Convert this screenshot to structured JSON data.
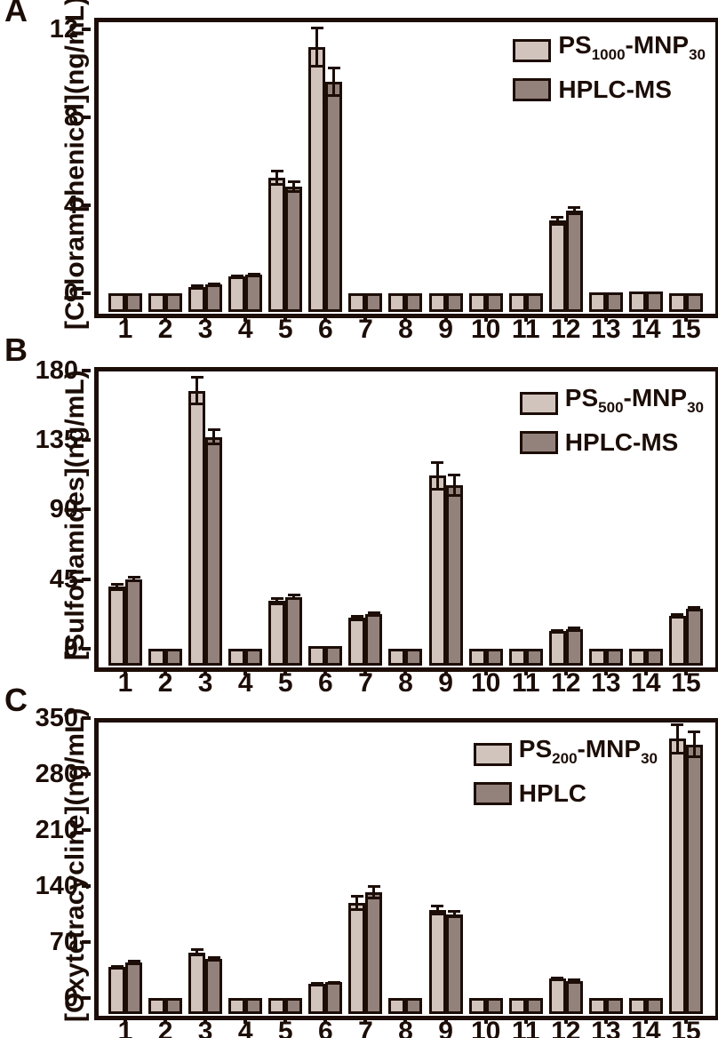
{
  "figure": {
    "background": "#ffffff",
    "ink_color": "#1c0d07",
    "bar_light_color": "#d1c4bd",
    "bar_dark_color": "#93827c"
  },
  "chart_data": [
    {
      "type": "bar",
      "panel_label": "A",
      "ylabel": "[Chloramphenicol](ng/mL)",
      "xlabel": "",
      "categories": [
        "1",
        "2",
        "3",
        "4",
        "5",
        "6",
        "7",
        "8",
        "9",
        "10",
        "11",
        "12",
        "13",
        "14",
        "15"
      ],
      "yticks": [
        0,
        4,
        8,
        12
      ],
      "ylim": [
        0,
        12.5
      ],
      "grid": false,
      "legend_position": "top-right",
      "legend": [
        {
          "label": "PS_{1000}-MNP_{30}",
          "color_key": "bar_light_color"
        },
        {
          "label": "HPLC-MS",
          "color_key": "bar_dark_color"
        }
      ],
      "series": [
        {
          "name": "PS1000-MNP30",
          "values": [
            0,
            0,
            0.3,
            0.75,
            5.25,
            11.2,
            0,
            0,
            0,
            0,
            0,
            3.3,
            0.05,
            0.1,
            0
          ],
          "errors": [
            0,
            0,
            0.06,
            0.05,
            0.33,
            0.9,
            0,
            0,
            0,
            0,
            0,
            0.17,
            0,
            0,
            0
          ]
        },
        {
          "name": "HPLC-MS",
          "values": [
            0,
            0,
            0.4,
            0.85,
            4.85,
            9.6,
            0,
            0,
            0,
            0,
            0,
            3.75,
            0.05,
            0.1,
            0
          ],
          "errors": [
            0,
            0,
            0.05,
            0.05,
            0.24,
            0.65,
            0,
            0,
            0,
            0,
            0,
            0.15,
            0,
            0,
            0
          ]
        }
      ]
    },
    {
      "type": "bar",
      "panel_label": "B",
      "ylabel": "[Sulfonamides](ng/mL)",
      "xlabel": "",
      "categories": [
        "1",
        "2",
        "3",
        "4",
        "5",
        "6",
        "7",
        "8",
        "9",
        "10",
        "11",
        "12",
        "13",
        "14",
        "15"
      ],
      "yticks": [
        0,
        45,
        90,
        135,
        180
      ],
      "ylim": [
        0,
        182
      ],
      "grid": false,
      "legend_position": "top-right",
      "legend": [
        {
          "label": "PS_{500}-MNP_{30}",
          "color_key": "bar_light_color"
        },
        {
          "label": "HPLC-MS",
          "color_key": "bar_dark_color"
        }
      ],
      "series": [
        {
          "name": "PS500-MNP30",
          "values": [
            40,
            0,
            167,
            0,
            31,
            2,
            20,
            0,
            112,
            0,
            0,
            11.5,
            0,
            0,
            21.5
          ],
          "errors": [
            2,
            0,
            9,
            0,
            2,
            0,
            1.5,
            0,
            9,
            0,
            0,
            0.8,
            0,
            0,
            1
          ]
        },
        {
          "name": "HPLC-MS",
          "values": [
            45,
            0,
            137,
            0,
            33.5,
            2,
            22.5,
            0,
            106,
            0,
            0,
            12.8,
            0,
            0,
            25.8
          ],
          "errors": [
            1.3,
            0,
            5,
            0,
            1.3,
            0,
            0.8,
            0,
            7,
            0,
            0,
            0.8,
            0,
            0,
            1
          ]
        }
      ]
    },
    {
      "type": "bar",
      "panel_label": "C",
      "ylabel": "[Oxytetracycline](ng/mL)",
      "xlabel": "",
      "categories": [
        "1",
        "2",
        "3",
        "4",
        "5",
        "6",
        "7",
        "8",
        "9",
        "10",
        "11",
        "12",
        "13",
        "14",
        "15"
      ],
      "yticks": [
        0,
        70,
        140,
        210,
        280,
        350
      ],
      "ylim": [
        0,
        350
      ],
      "grid": false,
      "legend_position": "top-right",
      "legend": [
        {
          "label": "PS_{200}-MNP_{30}",
          "color_key": "bar_light_color"
        },
        {
          "label": "HPLC",
          "color_key": "bar_dark_color"
        }
      ],
      "series": [
        {
          "name": "PS200-MNP30",
          "values": [
            38.5,
            0,
            57,
            0,
            0,
            18,
            119,
            0,
            110,
            0,
            0,
            25,
            0,
            0,
            324
          ],
          "errors": [
            2,
            0,
            4,
            0,
            0,
            1,
            9,
            0,
            6,
            0,
            0,
            1,
            0,
            0,
            18
          ]
        },
        {
          "name": "HPLC",
          "values": [
            44.8,
            0,
            49,
            0,
            0,
            19.5,
            132,
            0,
            105,
            0,
            0,
            21,
            0,
            0,
            317
          ],
          "errors": [
            1.5,
            0,
            2.5,
            0,
            0,
            1,
            8,
            0,
            4,
            0,
            0,
            2,
            0,
            0,
            16
          ]
        }
      ]
    }
  ]
}
